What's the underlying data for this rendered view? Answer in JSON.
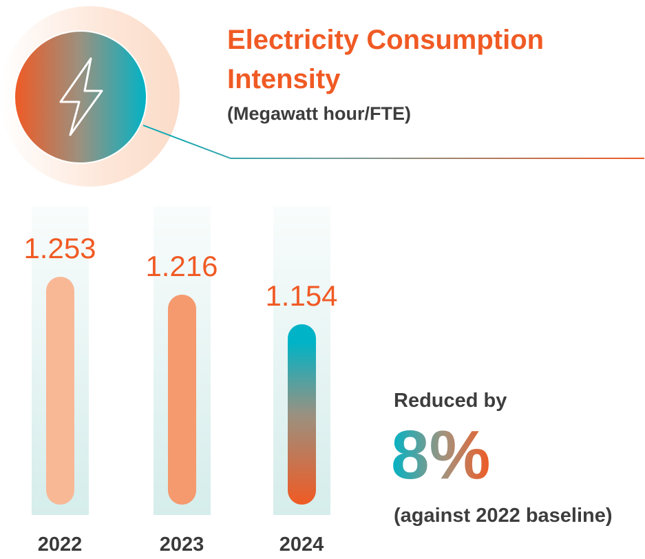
{
  "chart_data": {
    "type": "bar",
    "title": "Electricity Consumption Intensity",
    "subtitle": "(Megawatt hour/FTE)",
    "categories": [
      "2022",
      "2023",
      "2024"
    ],
    "values": [
      1.253,
      1.216,
      1.154
    ],
    "value_labels": [
      "1.253",
      "1.216",
      "1.154"
    ],
    "bar_colors": [
      "#f8b896",
      "#f59a6e",
      "gradient:#00b3c6-#f05a24"
    ],
    "grid": false
  },
  "icon": "lightning-bolt-icon",
  "colors": {
    "accent": "#f05a24",
    "teal": "#00b3c6",
    "text": "#3d3d3d"
  },
  "callout": {
    "lead": "Reduced by",
    "value": "8%",
    "note": "(against 2022 baseline)"
  }
}
